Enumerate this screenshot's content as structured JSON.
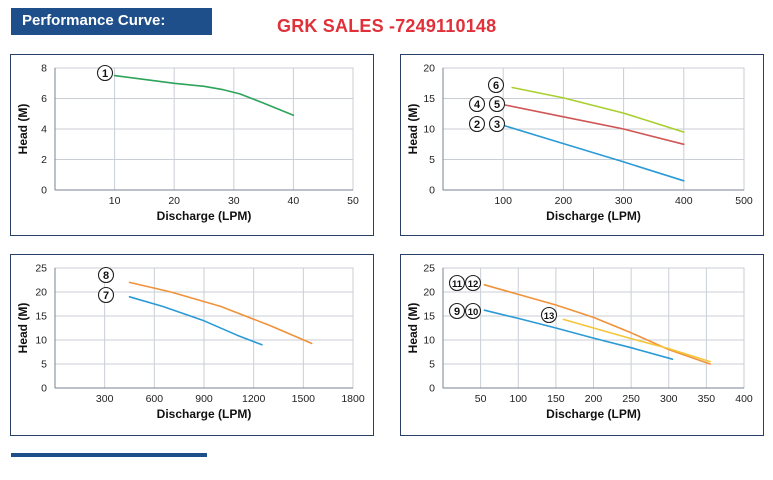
{
  "header": {
    "title": "Performance Curve:"
  },
  "brand": {
    "text": "GRK SALES -7249110148"
  },
  "colors": {
    "header_bg": "#1f4f8a",
    "brand_red": "#e0303a",
    "panel_border": "#2a3f66"
  },
  "chart_data": [
    {
      "type": "line",
      "xlabel": "Discharge (LPM)",
      "ylabel": "Head (M)",
      "xlim": [
        0,
        50
      ],
      "ylim": [
        0,
        8
      ],
      "xticks": [
        10,
        20,
        30,
        40,
        50
      ],
      "yticks": [
        0,
        2,
        4,
        6,
        8
      ],
      "grid": true,
      "series": [
        {
          "markers": [
            "1"
          ],
          "color": "#2ea35a",
          "x": [
            10,
            15,
            20,
            25,
            28,
            31,
            35,
            40
          ],
          "y": [
            7.5,
            7.25,
            7.0,
            6.8,
            6.6,
            6.3,
            5.7,
            4.9
          ]
        }
      ]
    },
    {
      "type": "line",
      "xlabel": "Discharge (LPM)",
      "ylabel": "Head (M)",
      "xlim": [
        0,
        500
      ],
      "ylim": [
        0,
        20
      ],
      "xticks": [
        100,
        200,
        300,
        400,
        500
      ],
      "yticks": [
        0,
        5,
        10,
        15,
        20
      ],
      "grid": true,
      "series": [
        {
          "markers": [
            "6"
          ],
          "color": "#a9cf2e",
          "x": [
            115,
            200,
            300,
            400
          ],
          "y": [
            16.8,
            15.1,
            12.6,
            9.5
          ]
        },
        {
          "markers": [
            "4",
            "5"
          ],
          "color": "#d05656",
          "x": [
            100,
            200,
            300,
            400
          ],
          "y": [
            14.0,
            12.0,
            10.0,
            7.5
          ]
        },
        {
          "markers": [
            "2",
            "3"
          ],
          "color": "#2a9ad6",
          "x": [
            100,
            200,
            300,
            400
          ],
          "y": [
            10.6,
            7.6,
            4.6,
            1.5
          ]
        }
      ]
    },
    {
      "type": "line",
      "xlabel": "Discharge (LPM)",
      "ylabel": "Head (M)",
      "xlim": [
        0,
        1800
      ],
      "ylim": [
        0,
        25
      ],
      "xticks": [
        300,
        600,
        900,
        1200,
        1500,
        1800
      ],
      "yticks": [
        0,
        5,
        10,
        15,
        20,
        25
      ],
      "grid": true,
      "series": [
        {
          "markers": [
            "8"
          ],
          "color": "#f0923a",
          "x": [
            450,
            700,
            1000,
            1300,
            1550
          ],
          "y": [
            22.0,
            20.0,
            17.0,
            13.0,
            9.3
          ]
        },
        {
          "markers": [
            "7"
          ],
          "color": "#2a9ad6",
          "x": [
            450,
            650,
            900,
            1100,
            1250
          ],
          "y": [
            19.0,
            17.0,
            14.0,
            11.0,
            9.0
          ]
        }
      ]
    },
    {
      "type": "line",
      "xlabel": "Discharge (LPM)",
      "ylabel": "Head (M)",
      "xlim": [
        0,
        400
      ],
      "ylim": [
        0,
        25
      ],
      "xticks": [
        50,
        100,
        150,
        200,
        250,
        300,
        350,
        400
      ],
      "yticks": [
        0,
        5,
        10,
        15,
        20,
        25
      ],
      "grid": true,
      "series": [
        {
          "markers": [
            "11",
            "12"
          ],
          "color": "#f0923a",
          "x": [
            55,
            100,
            150,
            200,
            250,
            300,
            355
          ],
          "y": [
            21.5,
            19.5,
            17.3,
            14.7,
            11.5,
            8.0,
            5.0
          ]
        },
        {
          "markers": [
            "13"
          ],
          "color": "#f5c53a",
          "x": [
            160,
            200,
            250,
            300,
            355
          ],
          "y": [
            14.3,
            12.5,
            10.3,
            8.2,
            5.5
          ]
        },
        {
          "markers": [
            "9",
            "10"
          ],
          "color": "#2a9ad6",
          "x": [
            55,
            100,
            150,
            200,
            250,
            305
          ],
          "y": [
            16.2,
            14.5,
            12.5,
            10.4,
            8.4,
            6.0
          ]
        }
      ]
    }
  ]
}
